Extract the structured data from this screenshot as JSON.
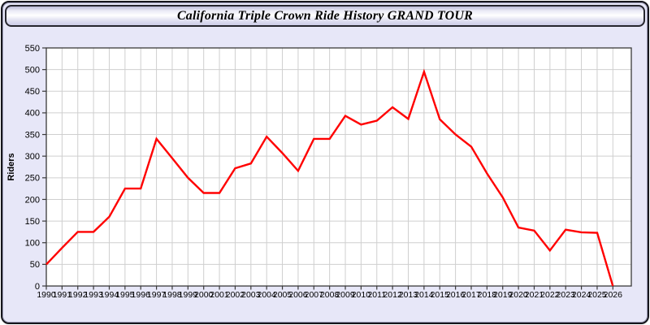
{
  "window": {
    "title": "California Triple Crown Ride History GRAND TOUR"
  },
  "colors": {
    "panel_bg": "#e7e7f8",
    "plot_bg": "#ffffff",
    "grid": "#cfcfcf",
    "axis": "#3a3a3a",
    "tick_text": "#000000",
    "line": "#ff0000"
  },
  "chart_data": {
    "type": "line",
    "title": "California Triple Crown Ride History GRAND TOUR",
    "xlabel": "",
    "ylabel": "Riders",
    "ylim": [
      0,
      550
    ],
    "ytick_step": 50,
    "grid": true,
    "legend_position": "none",
    "x": [
      1990,
      1991,
      1992,
      1993,
      1994,
      1995,
      1996,
      1997,
      1998,
      1999,
      2000,
      2001,
      2002,
      2003,
      2004,
      2005,
      2006,
      2007,
      2008,
      2009,
      2010,
      2011,
      2012,
      2013,
      2014,
      2015,
      2016,
      2017,
      2018,
      2019,
      2020,
      2021,
      2022,
      2023,
      2024,
      2025,
      2026
    ],
    "series": [
      {
        "name": "Riders",
        "values": [
          50,
          88,
          125,
          125,
          160,
          225,
          225,
          340,
          295,
          250,
          215,
          215,
          272,
          283,
          345,
          307,
          266,
          340,
          340,
          393,
          373,
          382,
          413,
          386,
          495,
          385,
          350,
          322,
          260,
          205,
          135,
          128,
          82,
          130,
          124,
          123,
          0
        ]
      }
    ]
  }
}
